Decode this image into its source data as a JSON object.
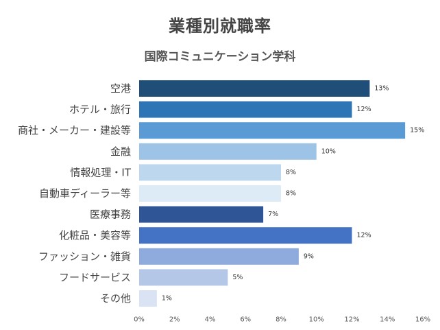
{
  "chart_data": {
    "type": "bar",
    "orientation": "horizontal",
    "title": "業種別就職率",
    "subtitle": "国際コミュニケーション学科",
    "categories": [
      "空港",
      "ホテル・旅行",
      "商社・メーカー・建設等",
      "金融",
      "情報処理・IT",
      "自動車ディーラー等",
      "医療事務",
      "化粧品・美容等",
      "ファッション・雑貨",
      "フードサービス",
      "その他"
    ],
    "values": [
      13,
      12,
      15,
      10,
      8,
      8,
      7,
      12,
      9,
      5,
      1
    ],
    "data_labels": [
      "13%",
      "12%",
      "15%",
      "10%",
      "8%",
      "8%",
      "7%",
      "12%",
      "9%",
      "5%",
      "1%"
    ],
    "bar_colors": [
      "#1f4e79",
      "#2e75b6",
      "#5b9bd5",
      "#9dc3e6",
      "#bdd7ee",
      "#ddebf7",
      "#2f5597",
      "#4472c4",
      "#8faadc",
      "#b4c7e7",
      "#dae3f3"
    ],
    "xlim": [
      0,
      16
    ],
    "xticks": [
      0,
      2,
      4,
      6,
      8,
      10,
      12,
      14,
      16
    ],
    "xtick_labels": [
      "0%",
      "2%",
      "4%",
      "6%",
      "8%",
      "10%",
      "12%",
      "14%",
      "16%"
    ],
    "grid": false,
    "legend": "none"
  }
}
